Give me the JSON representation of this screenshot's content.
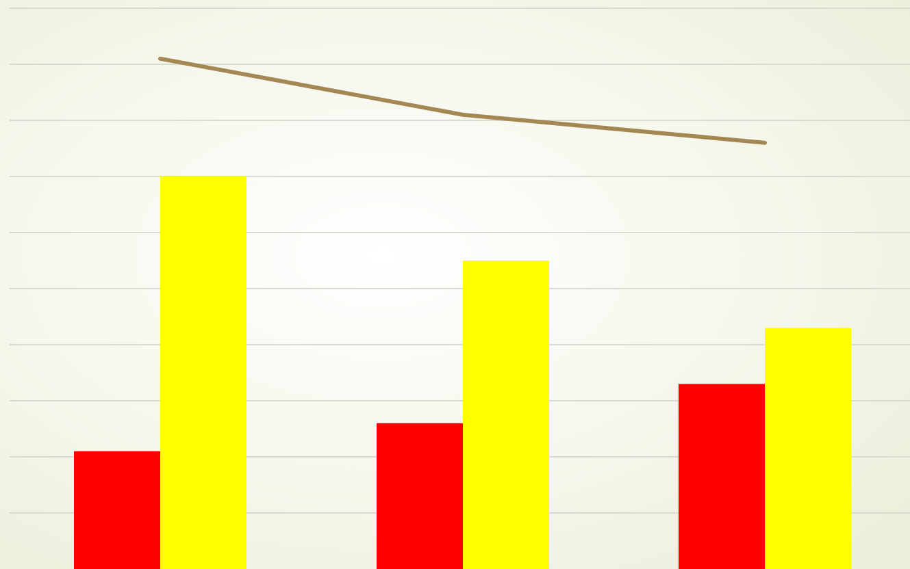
{
  "chart_data": {
    "type": "bar",
    "categories": [
      "",
      "",
      ""
    ],
    "ylim": [
      0,
      10
    ],
    "grid": true,
    "legend": "none",
    "series": [
      {
        "kind": "bar",
        "color": "#ff0000",
        "values": [
          2.1,
          2.6,
          3.3
        ]
      },
      {
        "kind": "bar",
        "color": "#ffff00",
        "values": [
          7.0,
          5.5,
          4.3
        ]
      },
      {
        "kind": "line",
        "color": "#a48752",
        "values": [
          9.1,
          8.1,
          7.6
        ]
      }
    ]
  }
}
